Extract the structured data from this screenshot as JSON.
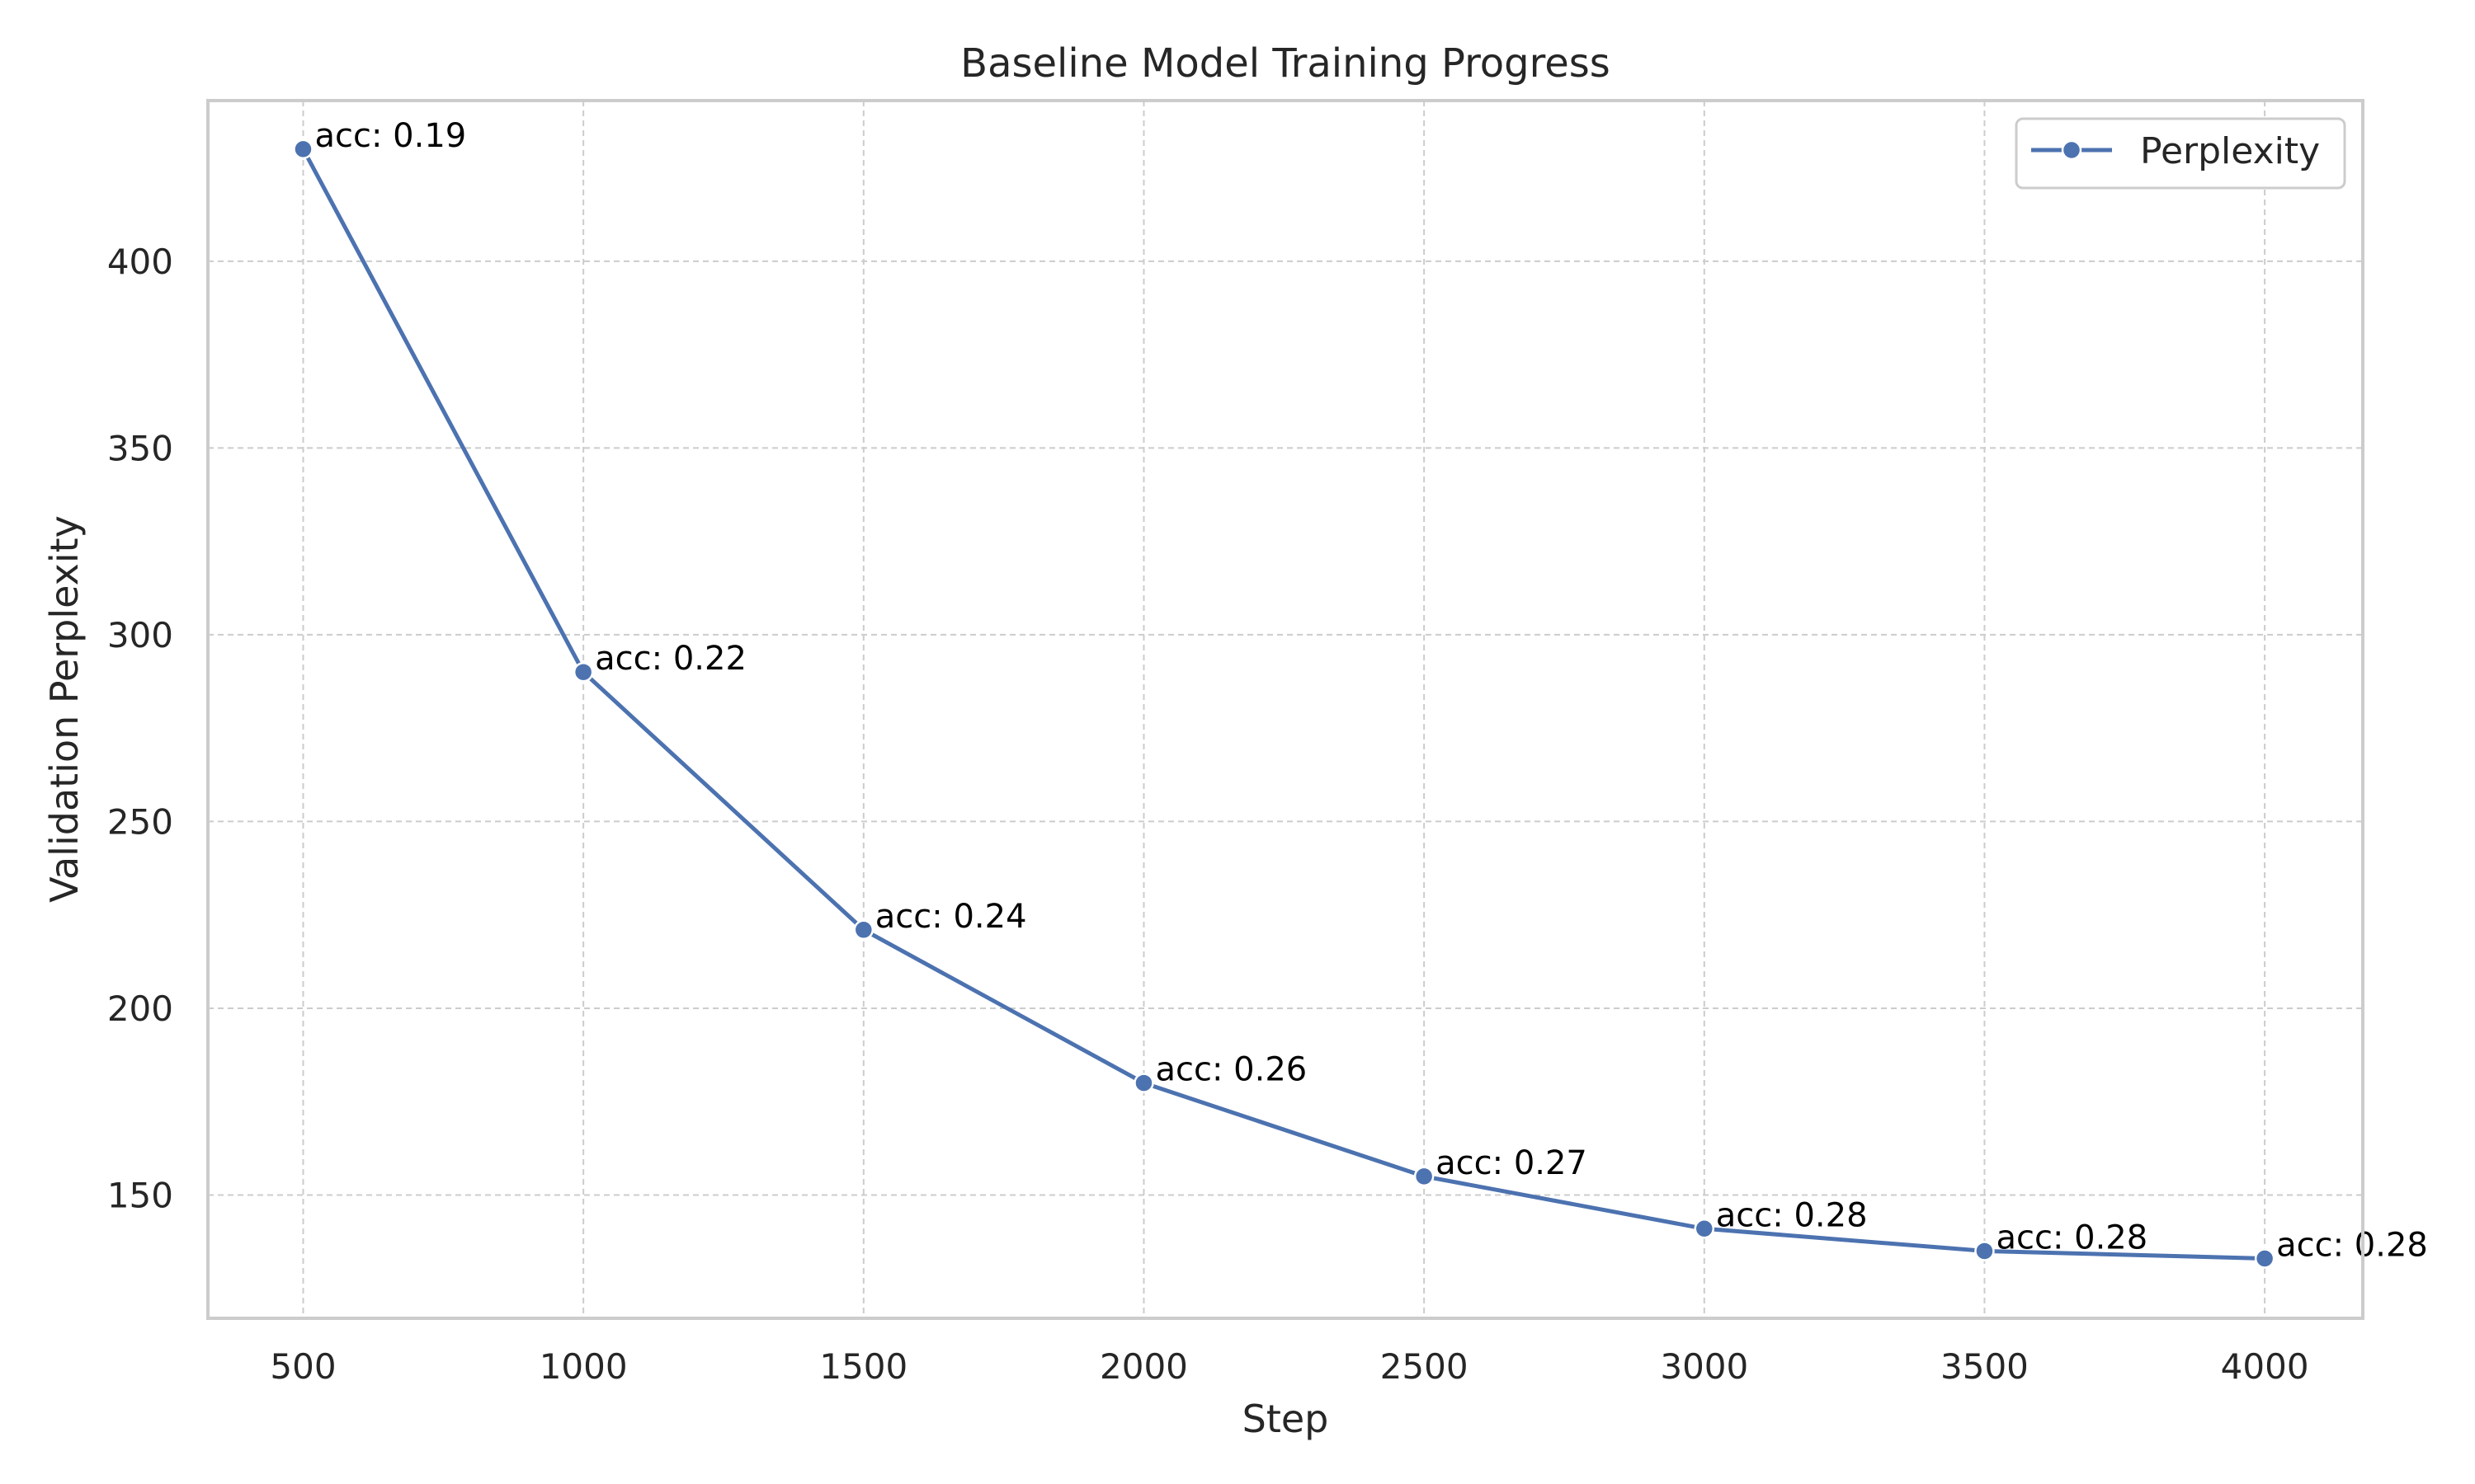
{
  "chart_data": {
    "type": "line",
    "title": "Baseline Model Training Progress",
    "xlabel": "Step",
    "ylabel": "Validation Perplexity",
    "xlim": [
      330,
      4175
    ],
    "ylim": [
      117,
      443
    ],
    "x_ticks": [
      500,
      1000,
      1500,
      2000,
      2500,
      3000,
      3500,
      4000
    ],
    "y_ticks": [
      150,
      200,
      250,
      300,
      350,
      400
    ],
    "grid": true,
    "legend_position": "top-right",
    "series": [
      {
        "name": "Perplexity",
        "color": "#4c72b0",
        "marker": "circle",
        "x": [
          500,
          1000,
          1500,
          2000,
          2500,
          3000,
          3500,
          4000
        ],
        "y": [
          430,
          290,
          221,
          180,
          155,
          141,
          135,
          133
        ],
        "annotations": [
          "acc: 0.19",
          "acc: 0.22",
          "acc: 0.24",
          "acc: 0.26",
          "acc: 0.27",
          "acc: 0.28",
          "acc: 0.28",
          "acc: 0.28"
        ]
      }
    ]
  }
}
